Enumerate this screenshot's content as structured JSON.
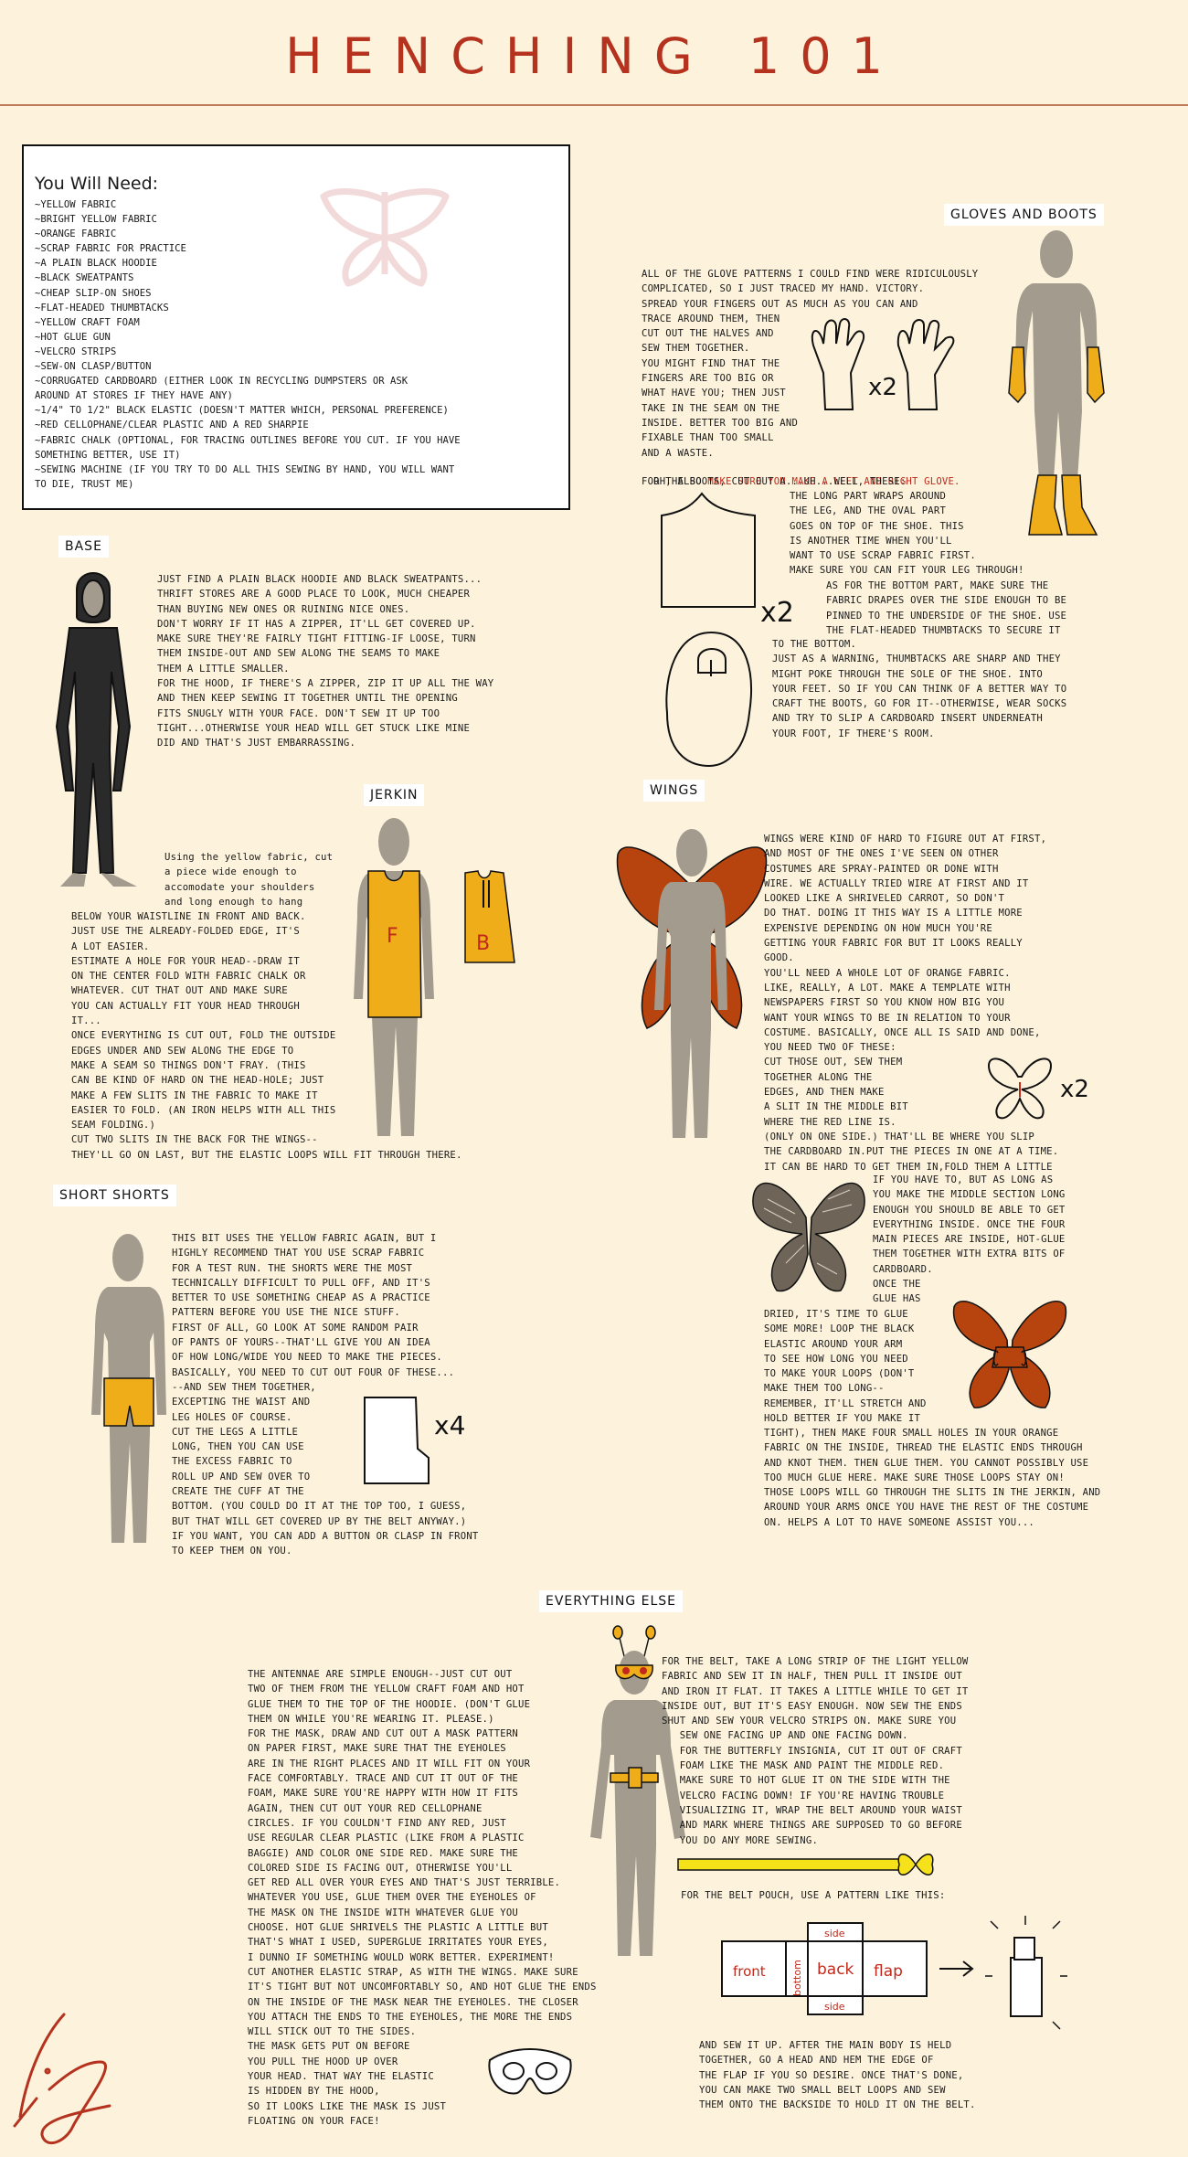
{
  "page": {
    "title": "HENCHING 101"
  },
  "need": {
    "title": "You Will Need:",
    "items": [
      "~YELLOW FABRIC",
      "~BRIGHT YELLOW FABRIC",
      "~ORANGE FABRIC",
      "~SCRAP FABRIC FOR PRACTICE",
      "~A PLAIN BLACK HOODIE",
      "~BLACK SWEATPANTS",
      "~CHEAP SLIP-ON SHOES",
      "~FLAT-HEADED THUMBTACKS",
      "~YELLOW CRAFT FOAM",
      "~HOT GLUE GUN",
      "~VELCRO STRIPS",
      "~SEW-ON CLASP/BUTTON",
      "~CORRUGATED CARDBOARD (EITHER LOOK IN RECYCLING DUMPSTERS OR ASK",
      "AROUND AT STORES IF THEY HAVE ANY)",
      "~1/4\" TO 1/2\" BLACK ELASTIC (DOESN'T MATTER WHICH, PERSONAL PREFERENCE)",
      "~RED CELLOPHANE/CLEAR PLASTIC AND A RED SHARPIE",
      "~FABRIC CHALK (OPTIONAL, FOR TRACING OUTLINES BEFORE YOU CUT. IF YOU HAVE",
      "SOMETHING BETTER, USE IT)",
      "~SEWING MACHINE (IF YOU TRY TO DO ALL THIS SEWING BY HAND, YOU WILL WANT",
      "TO DIE, TRUST ME)"
    ]
  },
  "base": {
    "label": "BASE",
    "lines": [
      "JUST FIND A PLAIN BLACK HOODIE AND BLACK SWEATPANTS...",
      "THRIFT STORES ARE A GOOD PLACE TO LOOK, MUCH CHEAPER",
      "THAN BUYING NEW ONES OR RUINING NICE ONES.",
      "DON'T WORRY IF IT HAS A ZIPPER, IT'LL GET COVERED UP.",
      "MAKE SURE THEY'RE FAIRLY TIGHT FITTING-IF LOOSE, TURN",
      "THEM INSIDE-OUT AND SEW ALONG THE SEAMS TO MAKE",
      "THEM A LITTLE SMALLER.",
      "FOR THE HOOD, IF THERE'S A ZIPPER, ZIP IT UP ALL THE WAY",
      "AND THEN KEEP SEWING IT TOGETHER UNTIL THE OPENING",
      "FITS SNUGLY WITH YOUR FACE. DON'T SEW IT UP TOO",
      "TIGHT...OTHERWISE YOUR HEAD WILL GET STUCK LIKE MINE",
      "DID AND THAT'S JUST EMBARRASSING."
    ]
  },
  "gloves": {
    "label": "GLOVES AND BOOTS",
    "lines_a": [
      "ALL OF THE GLOVE PATTERNS I COULD FIND WERE RIDICULOUSLY",
      "COMPLICATED, SO I JUST TRACED MY HAND. VICTORY.",
      "SPREAD YOUR FINGERS OUT AS MUCH AS YOU CAN AND",
      "TRACE AROUND THEM, THEN",
      "CUT OUT THE HALVES AND",
      "SEW THEM TOGETHER.",
      "YOU MIGHT FIND THAT THE",
      "FINGERS ARE TOO BIG OR",
      "WHAT HAVE YOU; THEN JUST",
      "TAKE IN THE SEAM ON THE",
      "INSIDE. BETTER TOO BIG AND",
      "FIXABLE THAN TOO SMALL",
      "AND A WASTE."
    ],
    "also_prefix": "OH, ALSO ",
    "also_red": "MAKE SURE YOU MAKE A LEFT AND RIGHT GLOVE.",
    "boots_lines": [
      "FOR THE BOOTS, CUT OUT A...UH...WELL, THESE:"
    ],
    "boots_b": [
      "THE LONG PART WRAPS AROUND",
      "THE LEG, AND THE OVAL PART",
      "GOES ON TOP OF THE SHOE. THIS",
      "IS ANOTHER TIME WHEN YOU'LL",
      "WANT TO USE SCRAP FABRIC FIRST.",
      "MAKE SURE YOU CAN FIT YOUR LEG THROUGH!"
    ],
    "boots_c": [
      "AS FOR THE BOTTOM PART, MAKE SURE THE",
      "FABRIC DRAPES OVER THE SIDE ENOUGH TO BE",
      "PINNED TO THE UNDERSIDE OF THE SHOE. USE",
      "THE FLAT-HEADED THUMBTACKS TO SECURE IT"
    ],
    "boots_d": [
      "TO THE BOTTOM.",
      "JUST AS A WARNING, THUMBTACKS ARE SHARP AND THEY",
      "MIGHT POKE THROUGH THE SOLE OF THE SHOE. INTO",
      "YOUR FEET. SO IF YOU CAN THINK OF A BETTER WAY TO",
      "CRAFT THE BOOTS, GO FOR IT--OTHERWISE, WEAR SOCKS",
      "AND TRY TO SLIP A CARDBOARD INSERT UNDERNEATH",
      "YOUR FOOT, IF THERE'S ROOM."
    ],
    "x2_hand": "x2",
    "x2_boot": "x2"
  },
  "jerkin": {
    "label": "JERKIN",
    "lines_a": [
      "Using the yellow fabric, cut",
      "a piece wide enough to",
      "accomodate your shoulders",
      "and long enough to hang"
    ],
    "lines_b": [
      "BELOW YOUR WAISTLINE IN FRONT AND BACK.",
      "JUST USE THE ALREADY-FOLDED EDGE, IT'S",
      "A LOT EASIER.",
      "ESTIMATE A HOLE FOR YOUR HEAD--DRAW IT",
      "ON THE CENTER FOLD WITH FABRIC CHALK OR",
      "WHATEVER. CUT THAT OUT AND MAKE SURE",
      "YOU CAN ACTUALLY FIT YOUR HEAD THROUGH",
      "IT...",
      "ONCE EVERYTHING IS CUT OUT, FOLD THE OUTSIDE",
      "EDGES UNDER AND SEW ALONG THE EDGE TO",
      "MAKE A SEAM SO THINGS DON'T FRAY. (THIS",
      "CAN BE KIND OF HARD ON THE HEAD-HOLE; JUST",
      "MAKE A FEW SLITS IN THE FABRIC TO MAKE IT",
      "EASIER TO FOLD. (AN IRON HELPS WITH ALL THIS",
      "SEAM FOLDING.)",
      "CUT TWO SLITS IN THE BACK FOR THE WINGS--",
      "THEY'LL GO ON LAST, BUT THE ELASTIC LOOPS WILL FIT THROUGH THERE."
    ],
    "front_letter": "F",
    "back_letter": "B"
  },
  "wings": {
    "label": "WINGS",
    "lines_a": [
      "WINGS WERE KIND OF HARD TO FIGURE OUT AT FIRST,",
      "AND MOST OF THE ONES I'VE SEEN ON OTHER",
      "COSTUMES ARE SPRAY-PAINTED OR DONE WITH",
      "WIRE. WE ACTUALLY TRIED WIRE AT FIRST AND IT",
      "LOOKED LIKE A SHRIVELED CARROT, SO DON'T",
      "DO THAT. DOING IT THIS WAY IS A LITTLE MORE",
      "EXPENSIVE DEPENDING ON HOW MUCH YOU'RE",
      "GETTING YOUR FABRIC FOR BUT IT LOOKS REALLY",
      "GOOD.",
      "YOU'LL NEED A WHOLE LOT OF ORANGE FABRIC.",
      "LIKE, REALLY, A LOT. MAKE A TEMPLATE WITH",
      "NEWSPAPERS FIRST SO YOU KNOW HOW BIG YOU",
      "WANT YOUR WINGS TO BE IN RELATION TO YOUR",
      "COSTUME. BASICALLY, ONCE ALL IS SAID AND DONE,",
      "YOU NEED TWO OF THESE:",
      "CUT THOSE OUT, SEW THEM",
      "TOGETHER ALONG THE",
      "EDGES, AND THEN MAKE",
      "A SLIT IN THE MIDDLE BIT",
      "WHERE THE RED LINE IS.",
      "(ONLY ON ONE SIDE.) THAT'LL BE WHERE YOU SLIP",
      "THE CARDBOARD IN.PUT THE PIECES IN ONE AT A TIME.",
      "IT CAN BE HARD TO GET THEM IN,FOLD THEM A LITTLE"
    ],
    "lines_b": [
      "IF YOU HAVE TO, BUT AS LONG AS",
      "YOU MAKE THE MIDDLE SECTION LONG",
      "ENOUGH YOU SHOULD BE ABLE TO GET",
      "EVERYTHING INSIDE. ONCE THE FOUR",
      "MAIN PIECES ARE INSIDE, HOT-GLUE",
      "THEM TOGETHER WITH EXTRA BITS OF",
      "CARDBOARD.",
      "ONCE THE",
      "GLUE HAS"
    ],
    "lines_c": [
      "DRIED, IT'S TIME TO GLUE",
      "SOME MORE! LOOP THE BLACK",
      "ELASTIC AROUND YOUR ARM",
      "TO SEE HOW LONG YOU NEED",
      "TO MAKE YOUR LOOPS (DON'T",
      "MAKE THEM TOO LONG--",
      "REMEMBER, IT'LL STRETCH AND",
      "HOLD BETTER IF YOU MAKE IT"
    ],
    "lines_d": [
      "TIGHT), THEN MAKE FOUR SMALL HOLES IN YOUR ORANGE",
      "FABRIC ON THE INSIDE, THREAD THE ELASTIC ENDS THROUGH",
      "AND KNOT THEM. THEN GLUE THEM. YOU CANNOT POSSIBLY USE",
      "TOO MUCH GLUE HERE. MAKE SURE THOSE LOOPS STAY ON!",
      "THOSE LOOPS WILL GO THROUGH THE SLITS IN THE JERKIN, AND",
      "AROUND YOUR ARMS ONCE YOU HAVE THE REST OF THE COSTUME",
      "ON. HELPS A LOT TO HAVE SOMEONE ASSIST YOU..."
    ],
    "x2": "x2"
  },
  "shorts": {
    "label": "SHORT SHORTS",
    "lines_a": [
      "THIS BIT USES THE YELLOW FABRIC AGAIN, BUT I",
      "HIGHLY RECOMMEND THAT YOU USE SCRAP FABRIC",
      "FOR A TEST RUN. THE SHORTS WERE THE MOST",
      "TECHNICALLY DIFFICULT TO PULL OFF, AND IT'S",
      "BETTER TO USE SOMETHING CHEAP AS A PRACTICE",
      "PATTERN BEFORE YOU USE THE NICE STUFF.",
      "FIRST OF ALL, GO LOOK AT SOME RANDOM PAIR",
      "OF PANTS OF YOURS--THAT'LL GIVE YOU AN IDEA",
      "OF HOW LONG/WIDE YOU NEED TO MAKE THE PIECES.",
      "BASICALLY, YOU NEED TO CUT OUT FOUR OF THESE...",
      "--AND SEW THEM TOGETHER,",
      "EXCEPTING THE WAIST AND",
      "LEG HOLES OF COURSE.",
      "CUT THE LEGS A LITTLE",
      "LONG, THEN YOU CAN USE",
      "THE EXCESS FABRIC TO",
      "ROLL UP AND SEW OVER TO",
      "CREATE THE CUFF AT THE",
      "BOTTOM. (YOU COULD DO IT AT THE TOP TOO, I GUESS,",
      "BUT THAT WILL GET COVERED UP BY THE BELT ANYWAY.)",
      "IF YOU WANT, YOU CAN ADD A BUTTON OR CLASP IN FRONT",
      "TO KEEP THEM ON YOU."
    ],
    "x4": "x4"
  },
  "else": {
    "label": "EVERYTHING ELSE",
    "lines_a": [
      "THE ANTENNAE ARE SIMPLE ENOUGH--JUST CUT OUT",
      "TWO OF THEM FROM THE YELLOW CRAFT FOAM AND HOT",
      "GLUE THEM TO THE TOP OF THE HOODIE. (DON'T GLUE",
      "THEM ON WHILE YOU'RE WEARING IT. PLEASE.)",
      "FOR THE MASK, DRAW AND CUT OUT A MASK PATTERN",
      "ON PAPER FIRST, MAKE SURE THAT THE EYEHOLES",
      "ARE IN THE RIGHT PLACES AND IT WILL FIT ON YOUR",
      "FACE COMFORTABLY. TRACE AND CUT IT OUT OF THE",
      "FOAM, MAKE SURE YOU'RE HAPPY WITH HOW IT FITS",
      "AGAIN, THEN CUT OUT YOUR RED CELLOPHANE",
      "CIRCLES. IF YOU COULDN'T FIND ANY RED, JUST",
      "USE REGULAR CLEAR PLASTIC (LIKE FROM A PLASTIC",
      "BAGGIE) AND COLOR ONE SIDE RED. MAKE SURE THE",
      "COLORED SIDE IS FACING OUT, OTHERWISE YOU'LL",
      "GET RED ALL OVER YOUR EYES AND THAT'S JUST TERRIBLE.",
      "WHATEVER YOU USE, GLUE THEM OVER THE EYEHOLES OF",
      "THE MASK ON THE INSIDE WITH WHATEVER GLUE YOU",
      "CHOOSE. HOT GLUE SHRIVELS THE PLASTIC A LITTLE BUT",
      "THAT'S WHAT I USED, SUPERGLUE IRRITATES YOUR EYES,",
      "I DUNNO IF SOMETHING WOULD WORK BETTER. EXPERIMENT!",
      "CUT ANOTHER ELASTIC STRAP, AS WITH THE WINGS. MAKE SURE",
      "IT'S TIGHT BUT NOT UNCOMFORTABLY SO, AND HOT GLUE THE ENDS",
      "ON THE INSIDE OF THE MASK NEAR THE EYEHOLES. THE CLOSER",
      "YOU ATTACH THE ENDS TO THE EYEHOLES, THE MORE THE ENDS",
      "WILL STICK OUT TO THE SIDES.",
      "THE MASK GETS PUT ON BEFORE",
      "YOU PULL THE HOOD UP OVER",
      "YOUR HEAD. THAT WAY THE ELASTIC",
      "IS HIDDEN BY THE HOOD,",
      "SO IT LOOKS LIKE THE MASK IS JUST",
      "FLOATING ON YOUR FACE!"
    ],
    "lines_b": [
      "FOR THE BELT, TAKE A LONG STRIP OF THE LIGHT YELLOW",
      "FABRIC AND SEW IT IN HALF, THEN PULL IT INSIDE OUT",
      "AND IRON IT FLAT. IT TAKES A LITTLE WHILE TO GET IT",
      "INSIDE OUT, BUT IT'S EASY ENOUGH. NOW SEW THE ENDS",
      "SHUT AND SEW YOUR VELCRO STRIPS ON. MAKE SURE YOU",
      "   SEW ONE FACING UP AND ONE FACING DOWN.",
      "   FOR THE BUTTERFLY INSIGNIA, CUT IT OUT OF CRAFT",
      "   FOAM LIKE THE MASK AND PAINT THE MIDDLE RED.",
      "   MAKE SURE TO HOT GLUE IT ON THE SIDE WITH THE",
      "   VELCRO FACING DOWN! IF YOU'RE HAVING TROUBLE",
      "   VISUALIZING IT, WRAP THE BELT AROUND YOUR WAIST",
      "   AND MARK WHERE THINGS ARE SUPPOSED TO GO BEFORE",
      "   YOU DO ANY MORE SEWING."
    ],
    "pouch_line": "FOR THE BELT POUCH, USE A PATTERN LIKE THIS:",
    "pouch_labels": {
      "front": "front",
      "bottom": "bottom",
      "back": "back",
      "flap": "flap",
      "side_top": "side",
      "side_bottom": "side"
    },
    "lines_c": [
      "AND SEW IT UP. AFTER THE MAIN BODY IS HELD",
      "TOGETHER, GO A HEAD AND HEM THE EDGE OF",
      "THE FLAP IF YOU SO DESIRE. ONCE THAT'S DONE,",
      "YOU CAN MAKE TWO SMALL BELT LOOPS AND SEW",
      "THEM ONTO THE BACKSIDE TO HOLD IT ON THE BELT."
    ]
  },
  "colors": {
    "background": "#fdf3dd",
    "title": "#b5331e",
    "accent_red": "#c0291b",
    "yellow": "#f0ad1a",
    "orange": "#b7440f",
    "figure": "#a39c8e"
  }
}
